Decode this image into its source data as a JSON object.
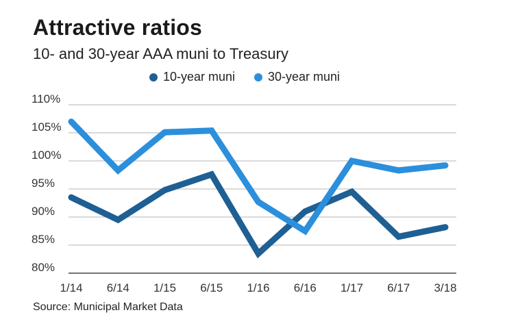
{
  "chart_data": {
    "type": "line",
    "title": "Attractive ratios",
    "subtitle": "10- and 30-year AAA muni to Treasury",
    "categories": [
      "1/14",
      "6/14",
      "1/15",
      "6/15",
      "1/16",
      "6/16",
      "1/17",
      "6/17",
      "3/18"
    ],
    "series": [
      {
        "name": "10-year muni",
        "color": "#1e5f94",
        "values": [
          93.5,
          89.5,
          94.8,
          97.6,
          83.5,
          91.0,
          94.5,
          86.5,
          88.2
        ]
      },
      {
        "name": "30-year muni",
        "color": "#2b8fdc",
        "values": [
          107.0,
          98.3,
          105.1,
          105.4,
          92.7,
          87.5,
          100.0,
          98.3,
          99.2
        ]
      }
    ],
    "yticks": [
      "110%",
      "105%",
      "100%",
      "95%",
      "90%",
      "85%",
      "80%"
    ],
    "ytick_values": [
      110,
      105,
      100,
      95,
      90,
      85,
      80
    ],
    "ylim": [
      80,
      110
    ],
    "xlabel": "",
    "ylabel": "",
    "grid": true,
    "legend_position": "top"
  },
  "source": "Source: Municipal Market Data"
}
